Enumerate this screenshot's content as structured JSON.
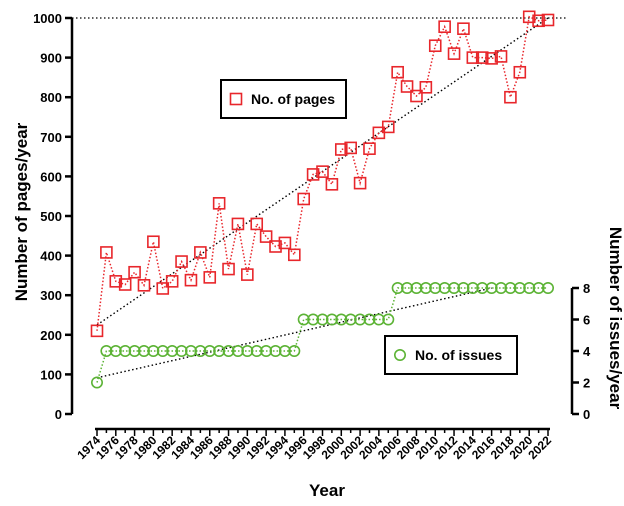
{
  "chart_data": {
    "type": "line",
    "xlabel": "Year",
    "ylabel_left": "Number of pages/year",
    "ylabel_right": "Number of issues/year",
    "x": [
      1974,
      1975,
      1976,
      1977,
      1978,
      1979,
      1980,
      1981,
      1982,
      1983,
      1984,
      1985,
      1986,
      1987,
      1988,
      1989,
      1990,
      1991,
      1992,
      1993,
      1994,
      1995,
      1996,
      1997,
      1998,
      1999,
      2000,
      2001,
      2002,
      2003,
      2004,
      2005,
      2006,
      2007,
      2008,
      2009,
      2010,
      2011,
      2012,
      2013,
      2014,
      2015,
      2016,
      2017,
      2018,
      2019,
      2020,
      2021,
      2022
    ],
    "x_ticks": [
      "1974",
      "1976",
      "1978",
      "1980",
      "1982",
      "1984",
      "1986",
      "1988",
      "1990",
      "1992",
      "1994",
      "1996",
      "1998",
      "2000",
      "2002",
      "2004",
      "2006",
      "2008",
      "2010",
      "2012",
      "2014",
      "2016",
      "2018",
      "2020",
      "2022"
    ],
    "ylim_left": [
      0,
      1000
    ],
    "yticks_left": [
      "0",
      "100",
      "200",
      "300",
      "400",
      "500",
      "600",
      "700",
      "800",
      "900",
      "1000"
    ],
    "ylim_right": [
      0,
      8
    ],
    "yticks_right": [
      "0",
      "2",
      "4",
      "6",
      "8"
    ],
    "reference_line_left": 1000,
    "series": [
      {
        "name": "No. of pages",
        "axis": "left",
        "color": "#e8262b",
        "marker": "square",
        "values": [
          210,
          408,
          335,
          327,
          358,
          325,
          435,
          317,
          335,
          385,
          338,
          408,
          345,
          532,
          366,
          480,
          352,
          480,
          448,
          423,
          432,
          402,
          543,
          605,
          612,
          580,
          668,
          672,
          583,
          670,
          710,
          725,
          863,
          827,
          803,
          825,
          930,
          978,
          910,
          973,
          900,
          900,
          898,
          903,
          800,
          863,
          1003,
          993,
          995
        ]
      },
      {
        "name": "No. of issues",
        "axis": "right",
        "color": "#5cb335",
        "marker": "circle",
        "values": [
          2,
          4,
          4,
          4,
          4,
          4,
          4,
          4,
          4,
          4,
          4,
          4,
          4,
          4,
          4,
          4,
          4,
          4,
          4,
          4,
          4,
          4,
          6,
          6,
          6,
          6,
          6,
          6,
          6,
          6,
          6,
          6,
          8,
          8,
          8,
          8,
          8,
          8,
          8,
          8,
          8,
          8,
          8,
          8,
          8,
          8,
          8,
          8,
          8
        ]
      }
    ],
    "trend_lines": [
      {
        "series": "No. of pages",
        "from": [
          1974,
          225
        ],
        "to": [
          2022,
          1000
        ]
      },
      {
        "series": "No. of issues",
        "from": [
          1974,
          2.3
        ],
        "to": [
          2016,
          8
        ]
      }
    ],
    "legend": [
      "No. of pages",
      "No. of issues"
    ],
    "grid": false
  }
}
